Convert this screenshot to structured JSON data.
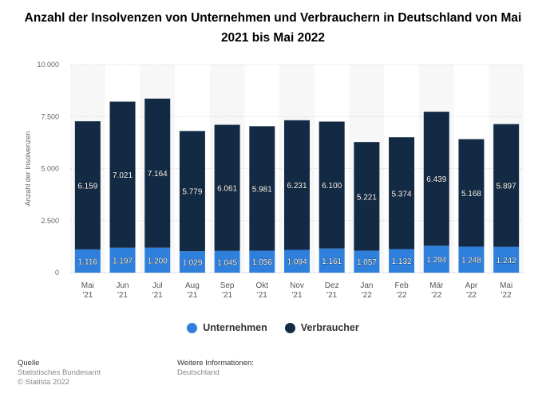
{
  "chart_data": {
    "type": "bar",
    "stacked": true,
    "title": "Anzahl der Insolvenzen von Unternehmen und Verbrauchern in Deutschland von Mai 2021 bis Mai 2022",
    "ylabel": "Anzahl der Insolvenzen",
    "xlabel": "",
    "ylim": [
      0,
      10000
    ],
    "yticks": [
      0,
      2500,
      5000,
      7500,
      10000
    ],
    "ytick_labels": [
      "0",
      "2.500",
      "5.000",
      "7.500",
      "10.000"
    ],
    "categories": [
      [
        "Mai",
        "'21"
      ],
      [
        "Jun",
        "'21"
      ],
      [
        "Jul",
        "'21"
      ],
      [
        "Aug",
        "'21"
      ],
      [
        "Sep",
        "'21"
      ],
      [
        "Okt",
        "'21"
      ],
      [
        "Nov",
        "'21"
      ],
      [
        "Dez",
        "'21"
      ],
      [
        "Jan",
        "'22"
      ],
      [
        "Feb",
        "'22"
      ],
      [
        "Mär",
        "'22"
      ],
      [
        "Apr",
        "'22"
      ],
      [
        "Mai",
        "'22"
      ]
    ],
    "series": [
      {
        "name": "Unternehmen",
        "color": "#2f80dd",
        "values": [
          1116,
          1197,
          1200,
          1029,
          1045,
          1056,
          1094,
          1161,
          1057,
          1132,
          1294,
          1248,
          1242
        ],
        "labels": [
          "1.116",
          "1.197",
          "1.200",
          "1.029",
          "1.045",
          "1.056",
          "1.094",
          "1.161",
          "1.057",
          "1.132",
          "1.294",
          "1.248",
          "1.242"
        ]
      },
      {
        "name": "Verbraucher",
        "color": "#132a44",
        "values": [
          6159,
          7021,
          7164,
          5779,
          6061,
          5981,
          6231,
          6100,
          5221,
          5374,
          6439,
          5168,
          5897
        ],
        "labels": [
          "6.159",
          "7.021",
          "7.164",
          "5.779",
          "6.061",
          "5.981",
          "6.231",
          "6.100",
          "5.221",
          "5.374",
          "6.439",
          "5.168",
          "5.897"
        ]
      }
    ],
    "grid": true,
    "legend_position": "bottom-center"
  },
  "footer": {
    "source_heading": "Quelle",
    "source_lines": [
      "Statistisches Bundesamt",
      "© Statista 2022"
    ],
    "info_heading": "Weitere Informationen:",
    "info_lines": [
      "Deutschland"
    ]
  }
}
